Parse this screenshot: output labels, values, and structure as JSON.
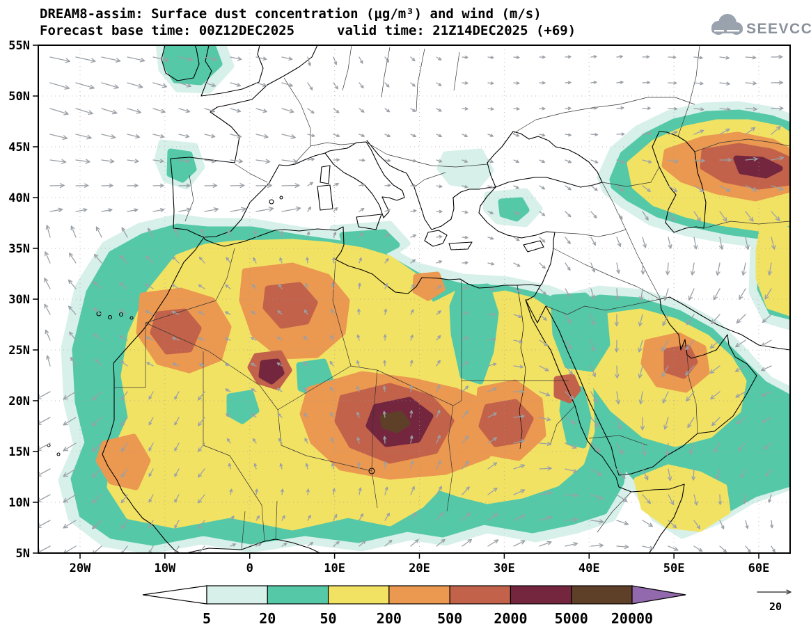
{
  "header": {
    "title": "DREAM8-assim: Surface dust concentration (μg/m³) and wind (m/s)",
    "base_time": "Forecast base time: 00Z12DEC2025",
    "valid_time": "valid time: 21Z14DEC2025 (+69)",
    "logo_text": "SEEVCCC"
  },
  "map": {
    "lat_ticks": [
      "5N",
      "10N",
      "15N",
      "20N",
      "25N",
      "30N",
      "35N",
      "40N",
      "45N",
      "50N",
      "55N"
    ],
    "lon_ticks": [
      "20W",
      "10W",
      "0",
      "10E",
      "20E",
      "30E",
      "40E",
      "50E",
      "60E"
    ]
  },
  "colorbar": {
    "levels": [
      "5",
      "20",
      "50",
      "200",
      "500",
      "2000",
      "5000",
      "20000"
    ],
    "segment_colors": [
      "#d7f0ea",
      "#55c9a7",
      "#f2e264",
      "#eb9850",
      "#c2624a",
      "#74263f",
      "#5e3f27"
    ],
    "below_color": "#ffffff",
    "above_color": "#9169ac",
    "units": "μg/m³"
  },
  "wind": {
    "reference_value": "20",
    "units": "m/s",
    "arrow_color": "#9aa0a6"
  },
  "chart_data": {
    "type": "heatmap",
    "title": "DREAM8-assim: Surface dust concentration (μg/m³) and wind (m/s)",
    "subtitle": "Forecast base time: 00Z12DEC2025  valid time: 21Z14DEC2025 (+69)",
    "projection": "latitude-longitude map of North Africa, Europe and the Middle East",
    "xlabel": "longitude",
    "ylabel": "latitude",
    "x_ticks": [
      "20W",
      "10W",
      "0",
      "10E",
      "20E",
      "30E",
      "40E",
      "50E",
      "60E"
    ],
    "y_ticks": [
      "5N",
      "10N",
      "15N",
      "20N",
      "25N",
      "30N",
      "35N",
      "40N",
      "45N",
      "50N",
      "55N"
    ],
    "lon_range": [
      -25,
      63.5
    ],
    "lat_range": [
      5,
      55
    ],
    "units": "μg/m³",
    "contour_levels": [
      5,
      20,
      50,
      200,
      500,
      2000,
      5000,
      20000
    ],
    "level_colors": [
      "#ffffff",
      "#d7f0ea",
      "#55c9a7",
      "#f2e264",
      "#eb9850",
      "#c2624a",
      "#74263f",
      "#5e3f27",
      "#9169ac"
    ],
    "wind": {
      "reference_speed_m_s": 20,
      "style": "gray vector arrows on regular grid"
    },
    "grid": "dotted graticule every 5 deg latitude / 10 deg longitude",
    "legend_position": "bottom colorbar with open arrow ends",
    "features": [
      {
        "region": "Sahara-wide plume (8N-33N, 17W-35E)",
        "level": "50-200 background with embedded maxima"
      },
      {
        "region": "Bodele / Chad-Niger core (15N-20N, 12E-22E)",
        "level": "2000-5000 core with small >5000 patch"
      },
      {
        "region": "Western Morocco / Western Sahara (26N-31N, 12W-4W)",
        "level": "500-2000"
      },
      {
        "region": "Central Algeria - Libya (22N-32N, 0E-12E)",
        "level": "500-2000 patches"
      },
      {
        "region": "Sudan (13N-18N, 23E-30E)",
        "level": "500-2000"
      },
      {
        "region": "Senegal coast (12N-16N, 18W-14W)",
        "level": "200-500"
      },
      {
        "region": "Eastern Arabia (20N-26N, 46E-54E)",
        "level": "500-2000 patch"
      },
      {
        "region": "Caucasus - Caspian belt (40N-47N, 42E-64E)",
        "level": "up to 2000-5000 streak"
      },
      {
        "region": "Horn of Africa (6N-13N, 42E-52E)",
        "level": "50-200"
      },
      {
        "region": "UK / Ireland and NW Iberia coast",
        "level": "5-50 traces"
      }
    ]
  }
}
